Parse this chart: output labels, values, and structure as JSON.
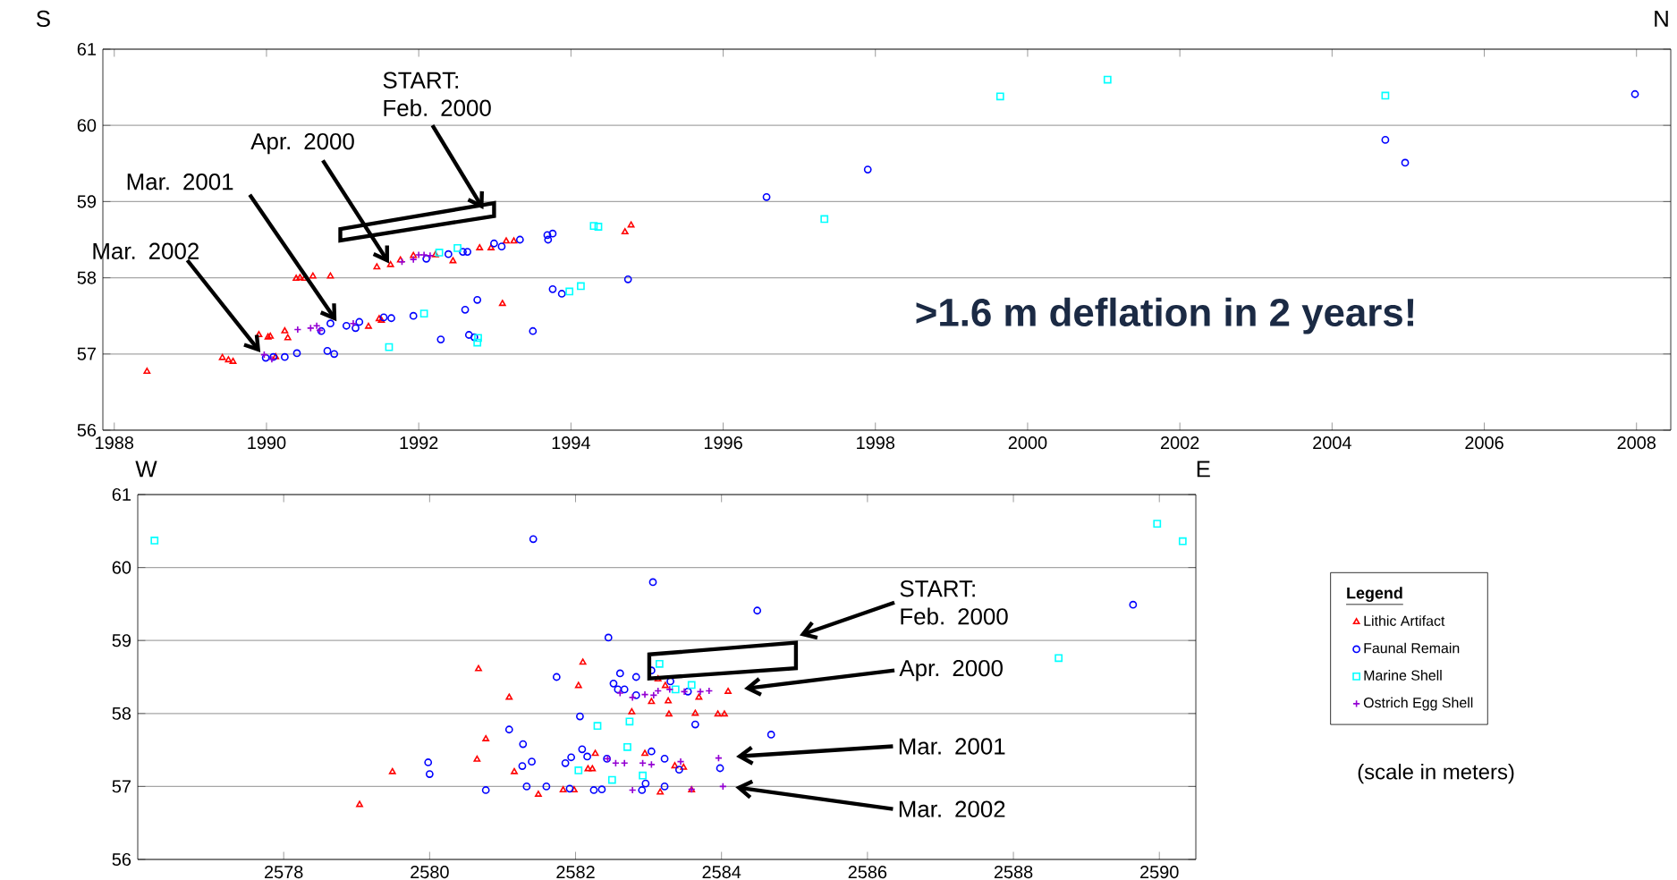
{
  "chart_data": [
    {
      "type": "scatter",
      "xlim": [
        1987.85,
        2008.45
      ],
      "ylim": [
        56,
        61
      ],
      "xticks": [
        1988,
        1990,
        1992,
        1994,
        1996,
        1998,
        2000,
        2002,
        2004,
        2006,
        2008
      ],
      "yticks": [
        56,
        57,
        58,
        59,
        60,
        61
      ],
      "grid": "y",
      "annotations": [
        "S",
        "N",
        "Mar. 2002",
        "Mar. 2001",
        "Apr. 2000",
        "START: Feb. 2000",
        ">1.6 m deflation in 2 years!"
      ],
      "series": [
        {
          "color": "#ff0000",
          "marker": "triangle",
          "x": [
            1988.43,
            1989.42,
            1989.5,
            1989.56,
            1989.9,
            1990.02,
            1990.05,
            1990.12,
            1990.24,
            1990.28,
            1990.39,
            1990.44,
            1990.5,
            1990.61,
            1990.84,
            1991.34,
            1991.48,
            1991.51,
            1991.45,
            1991.63,
            1991.76,
            1991.93,
            1992.22,
            1992.45,
            1992.8,
            1992.95,
            1993.1,
            1993.15,
            1993.25,
            1994.71,
            1994.79
          ],
          "values": [
            56.77,
            56.95,
            56.92,
            56.9,
            57.25,
            57.22,
            57.23,
            56.96,
            57.3,
            57.21,
            57.99,
            58.0,
            57.99,
            58.02,
            58.02,
            57.36,
            57.46,
            57.44,
            58.14,
            58.17,
            58.23,
            58.29,
            58.3,
            58.22,
            58.39,
            58.39,
            57.66,
            58.48,
            58.48,
            58.6,
            58.69
          ]
        },
        {
          "color": "#0000ff",
          "marker": "circle",
          "x": [
            1989.99,
            1990.09,
            1990.24,
            1990.4,
            1990.8,
            1990.89,
            1990.72,
            1990.84,
            1991.05,
            1991.17,
            1991.22,
            1991.54,
            1991.64,
            1991.93,
            1992.1,
            1992.29,
            1992.39,
            1992.58,
            1992.64,
            1992.61,
            1992.77,
            1992.66,
            1992.73,
            1992.99,
            1993.09,
            1993.33,
            1993.5,
            1993.69,
            1993.76,
            1993.7,
            1993.76,
            1993.88,
            1994.75,
            1996.57,
            1997.9,
            2004.7,
            2004.96,
            2007.98
          ],
          "values": [
            56.95,
            56.96,
            56.96,
            57.01,
            57.04,
            57.0,
            57.3,
            57.4,
            57.37,
            57.34,
            57.42,
            57.48,
            57.47,
            57.5,
            58.25,
            57.19,
            58.31,
            58.34,
            58.34,
            57.58,
            57.71,
            57.25,
            57.22,
            58.45,
            58.41,
            58.5,
            57.3,
            58.56,
            58.58,
            58.5,
            57.85,
            57.79,
            57.98,
            59.06,
            59.42,
            59.81,
            59.51,
            60.41
          ]
        },
        {
          "color": "#00ffff",
          "marker": "square",
          "x": [
            1991.61,
            1992.07,
            1992.27,
            1992.51,
            1992.78,
            1992.77,
            1993.98,
            1994.13,
            1994.3,
            1994.36,
            1997.33,
            1999.64,
            2001.05,
            2004.7
          ],
          "values": [
            57.09,
            57.53,
            58.33,
            58.39,
            57.21,
            57.15,
            57.82,
            57.89,
            58.68,
            58.67,
            58.77,
            60.38,
            60.6,
            60.39
          ]
        },
        {
          "color": "#9400d3",
          "marker": "cross",
          "x": [
            1989.97,
            1990.07,
            1990.41,
            1990.58,
            1990.66,
            1990.7,
            1991.14,
            1991.78,
            1991.93,
            1992.0,
            1992.07,
            1992.15
          ],
          "values": [
            56.99,
            56.93,
            57.32,
            57.34,
            57.37,
            57.31,
            57.4,
            58.21,
            58.24,
            58.3,
            58.3,
            58.29
          ]
        }
      ]
    },
    {
      "type": "scatter",
      "xlim": [
        2576,
        2590.5
      ],
      "ylim": [
        56,
        61
      ],
      "xticks": [
        2578,
        2580,
        2582,
        2584,
        2586,
        2588,
        2590
      ],
      "yticks": [
        56,
        57,
        58,
        59,
        60,
        61
      ],
      "grid": "y",
      "legend": "right",
      "legend_title": "Legend",
      "annotations": [
        "W",
        "E",
        "START: Feb. 2000",
        "Apr. 2000",
        "Mar. 2001",
        "Mar. 2002",
        "(scale in meters)"
      ],
      "series": [
        {
          "name": "Lithic Artifact",
          "color": "#ff0000",
          "marker": "triangle",
          "x": [
            2579.04,
            2579.49,
            2580.67,
            2580.77,
            2580.65,
            2581.09,
            2581.16,
            2581.49,
            2581.83,
            2581.98,
            2582.04,
            2582.1,
            2582.17,
            2582.23,
            2582.27,
            2582.77,
            2582.95,
            2583.04,
            2583.13,
            2583.16,
            2583.23,
            2583.27,
            2583.28,
            2583.36,
            2583.48,
            2583.59,
            2583.64,
            2583.69,
            2583.95,
            2584.04,
            2584.09
          ],
          "values": [
            56.75,
            57.2,
            58.61,
            57.65,
            57.37,
            58.22,
            57.2,
            56.89,
            56.95,
            56.95,
            58.38,
            58.7,
            57.24,
            57.24,
            57.45,
            58.02,
            57.45,
            58.16,
            58.47,
            56.92,
            58.38,
            58.17,
            57.99,
            57.28,
            57.26,
            56.95,
            58.0,
            58.22,
            57.99,
            57.99,
            58.3
          ]
        },
        {
          "name": "Faunal Remain",
          "color": "#0000ff",
          "marker": "circle",
          "x": [
            2579.98,
            2580.0,
            2580.77,
            2581.42,
            2581.09,
            2581.28,
            2581.27,
            2581.4,
            2581.33,
            2581.6,
            2581.74,
            2581.86,
            2581.94,
            2581.92,
            2582.06,
            2582.09,
            2582.16,
            2582.25,
            2582.36,
            2582.45,
            2582.43,
            2582.52,
            2582.61,
            2582.58,
            2582.67,
            2582.83,
            2582.83,
            2582.91,
            2582.96,
            2583.04,
            2583.04,
            2583.06,
            2583.22,
            2583.22,
            2583.3,
            2583.42,
            2583.54,
            2583.64,
            2583.98,
            2584.49,
            2584.68,
            2589.64
          ],
          "values": [
            57.33,
            57.17,
            56.95,
            60.39,
            57.78,
            57.58,
            57.28,
            57.34,
            57.0,
            57.0,
            58.5,
            57.32,
            57.4,
            56.97,
            57.96,
            57.51,
            57.41,
            56.95,
            56.96,
            59.04,
            57.38,
            58.41,
            58.55,
            58.33,
            58.33,
            58.5,
            58.25,
            56.95,
            57.04,
            58.59,
            57.48,
            59.8,
            57.38,
            57.0,
            58.44,
            57.23,
            58.3,
            57.85,
            57.25,
            59.41,
            57.71,
            59.49
          ]
        },
        {
          "name": "Marine Shell",
          "color": "#00ffff",
          "marker": "square",
          "x": [
            2576.23,
            2582.04,
            2582.3,
            2582.5,
            2582.71,
            2582.74,
            2582.92,
            2583.15,
            2583.37,
            2583.59,
            2588.62,
            2589.97,
            2590.32
          ],
          "values": [
            60.37,
            57.22,
            57.83,
            57.09,
            57.54,
            57.89,
            57.15,
            58.68,
            58.33,
            58.39,
            58.76,
            60.6,
            60.36
          ]
        },
        {
          "name": "Ostrich Egg Shell",
          "color": "#9400d3",
          "marker": "cross",
          "x": [
            2582.44,
            2582.55,
            2582.67,
            2582.61,
            2582.78,
            2582.78,
            2582.92,
            2582.95,
            2583.04,
            2583.07,
            2583.13,
            2583.29,
            2583.44,
            2583.49,
            2583.59,
            2583.71,
            2583.83,
            2583.96,
            2584.02
          ],
          "values": [
            57.38,
            57.32,
            57.32,
            58.28,
            58.22,
            56.95,
            57.32,
            58.26,
            57.3,
            58.25,
            58.31,
            58.33,
            57.34,
            58.3,
            56.96,
            58.3,
            58.31,
            57.39,
            57.0
          ]
        }
      ]
    }
  ]
}
